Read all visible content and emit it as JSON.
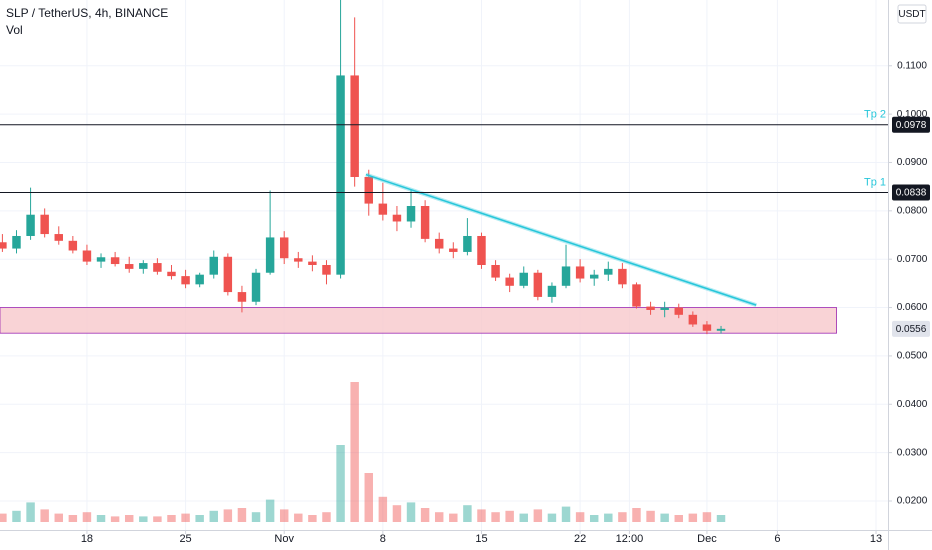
{
  "chart_data": {
    "type": "candlestick",
    "title": "SLP / TetherUS, 4h, BINANCE",
    "volume_label": "Vol",
    "currency": "USDT",
    "x": [
      12,
      13,
      14,
      15,
      16,
      17,
      18,
      19,
      20,
      21,
      22,
      23,
      24,
      25,
      26,
      27,
      28,
      29,
      30,
      31,
      32,
      33,
      34,
      35,
      36,
      37,
      38,
      39,
      40,
      41,
      42,
      43,
      44,
      45,
      46,
      47,
      48,
      49,
      50,
      51,
      52,
      53,
      54,
      55,
      56,
      57,
      58,
      59,
      60,
      61,
      62,
      63
    ],
    "open": [
      0.0735,
      0.0722,
      0.0748,
      0.0792,
      0.0752,
      0.0738,
      0.0718,
      0.0695,
      0.0704,
      0.069,
      0.068,
      0.0692,
      0.0674,
      0.0665,
      0.0648,
      0.0668,
      0.0705,
      0.0632,
      0.0612,
      0.0672,
      0.0745,
      0.0702,
      0.0695,
      0.0688,
      0.0668,
      0.108,
      0.087,
      0.0815,
      0.0792,
      0.0778,
      0.081,
      0.0742,
      0.0722,
      0.0715,
      0.0748,
      0.0688,
      0.0662,
      0.0645,
      0.0672,
      0.0622,
      0.0645,
      0.0685,
      0.066,
      0.0668,
      0.068,
      0.0648,
      0.0602,
      0.0595,
      0.06,
      0.0585,
      0.0565,
      0.0552
    ],
    "high": [
      0.0752,
      0.076,
      0.0848,
      0.0805,
      0.0768,
      0.0748,
      0.073,
      0.0712,
      0.0715,
      0.0705,
      0.0698,
      0.0702,
      0.0688,
      0.0678,
      0.0672,
      0.0718,
      0.0712,
      0.0645,
      0.068,
      0.0842,
      0.0758,
      0.0715,
      0.0708,
      0.0698,
      0.1236,
      0.12,
      0.0885,
      0.0858,
      0.081,
      0.0845,
      0.0822,
      0.0755,
      0.0735,
      0.0785,
      0.0755,
      0.0698,
      0.067,
      0.0685,
      0.0678,
      0.0652,
      0.073,
      0.07,
      0.0678,
      0.0695,
      0.0692,
      0.0652,
      0.0612,
      0.0612,
      0.0608,
      0.0592,
      0.0572,
      0.0562
    ],
    "low": [
      0.0715,
      0.0712,
      0.074,
      0.0745,
      0.073,
      0.0712,
      0.0688,
      0.0682,
      0.0685,
      0.0672,
      0.067,
      0.0668,
      0.0658,
      0.064,
      0.0642,
      0.066,
      0.0625,
      0.059,
      0.0605,
      0.0668,
      0.069,
      0.0682,
      0.0675,
      0.0648,
      0.066,
      0.085,
      0.079,
      0.078,
      0.0758,
      0.0765,
      0.0735,
      0.0712,
      0.0702,
      0.0708,
      0.068,
      0.0655,
      0.0632,
      0.064,
      0.0615,
      0.061,
      0.064,
      0.0652,
      0.0645,
      0.0655,
      0.064,
      0.0598,
      0.0585,
      0.058,
      0.0578,
      0.056,
      0.0545,
      0.0546
    ],
    "close": [
      0.0722,
      0.0748,
      0.0792,
      0.0752,
      0.0738,
      0.0718,
      0.0695,
      0.0704,
      0.069,
      0.068,
      0.0692,
      0.0674,
      0.0665,
      0.0648,
      0.0668,
      0.0705,
      0.0632,
      0.0612,
      0.0672,
      0.0745,
      0.0702,
      0.0695,
      0.0688,
      0.0668,
      0.108,
      0.087,
      0.0815,
      0.0792,
      0.0778,
      0.081,
      0.0742,
      0.0722,
      0.0715,
      0.0748,
      0.0688,
      0.0662,
      0.0645,
      0.0672,
      0.0622,
      0.0645,
      0.0685,
      0.066,
      0.0668,
      0.068,
      0.0648,
      0.0602,
      0.0595,
      0.06,
      0.0585,
      0.0565,
      0.0552,
      0.0556
    ],
    "volume": [
      6,
      8,
      14,
      9,
      6,
      5,
      7,
      5,
      4,
      5,
      4,
      4,
      5,
      6,
      5,
      8,
      9,
      10,
      7,
      16,
      9,
      6,
      5,
      7,
      55,
      100,
      35,
      18,
      12,
      14,
      10,
      7,
      6,
      12,
      9,
      7,
      8,
      6,
      9,
      6,
      11,
      7,
      5,
      6,
      7,
      10,
      8,
      6,
      5,
      6,
      7,
      5
    ],
    "vol_ylim": [
      0,
      100
    ],
    "xlim": [
      11.83,
      74.85
    ],
    "ylim": [
      0.014,
      0.1236
    ],
    "yticks": [
      {
        "value": 0.02,
        "label": "0.0200"
      },
      {
        "value": 0.03,
        "label": "0.0300"
      },
      {
        "value": 0.04,
        "label": "0.0400"
      },
      {
        "value": 0.05,
        "label": "0.0500"
      },
      {
        "value": 0.06,
        "label": "0.0600"
      },
      {
        "value": 0.07,
        "label": "0.0700"
      },
      {
        "value": 0.08,
        "label": "0.0800"
      },
      {
        "value": 0.09,
        "label": "0.0900"
      },
      {
        "value": 0.1,
        "label": "0.1000"
      },
      {
        "value": 0.11,
        "label": "0.1100"
      }
    ],
    "xticks": [
      {
        "value": 18,
        "label": "18"
      },
      {
        "value": 25,
        "label": "25"
      },
      {
        "value": 32,
        "label": "Nov"
      },
      {
        "value": 39,
        "label": "8"
      },
      {
        "value": 46,
        "label": "15"
      },
      {
        "value": 53,
        "label": "22"
      },
      {
        "value": 56.5,
        "label": "12:00"
      },
      {
        "value": 62,
        "label": "Dec"
      },
      {
        "value": 67,
        "label": "6"
      },
      {
        "value": 74,
        "label": "13"
      }
    ],
    "grid": true,
    "up_color": "#26a69a",
    "down_color": "#ef5350",
    "hlines": [
      {
        "name": "Tp 2",
        "value": 0.0978
      },
      {
        "name": "Tp 1",
        "value": 0.0838
      }
    ],
    "hline_color": "#131722",
    "label_color": "#26c6da",
    "last_price": 0.0556,
    "trendline": {
      "x": [
        37.8,
        65.5
      ],
      "y": [
        0.0875,
        0.0605
      ],
      "color": "#26c6da"
    },
    "zone": {
      "x": [
        11.83,
        71.2
      ],
      "y": [
        0.0547,
        0.06
      ],
      "color": "#f8c8cc"
    }
  }
}
